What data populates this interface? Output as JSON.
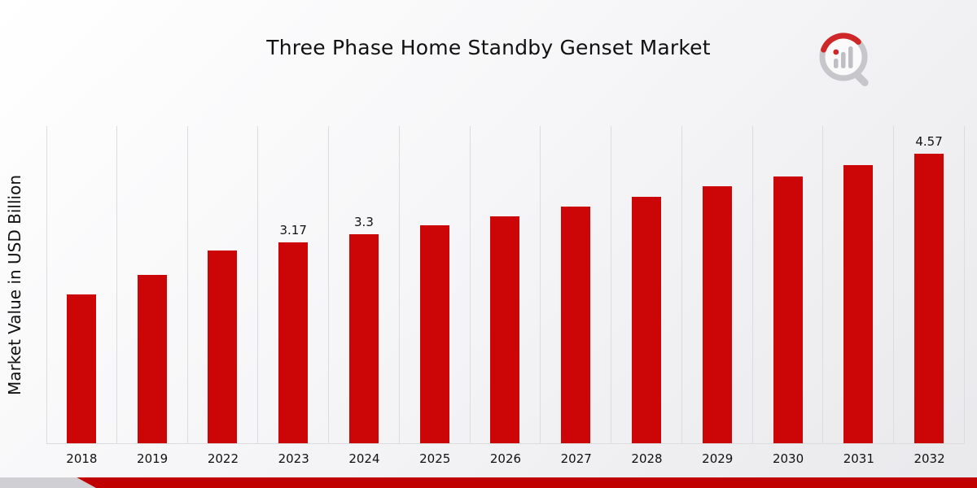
{
  "title": "Three Phase Home Standby Genset Market",
  "ylabel": "Market Value in USD Billion",
  "colors": {
    "bar": "#cc0606",
    "footer": "#c00000",
    "gridline": "#dcdcdf",
    "logo_gray": "#c2c2c7",
    "logo_red": "#cc1111",
    "background_top": "#ffffff",
    "background_bottom": "#e9e9ec"
  },
  "logo": {
    "name": "market-research-magnifier-logo"
  },
  "chart_data": {
    "type": "bar",
    "title": "Three Phase Home Standby Genset Market",
    "xlabel": "",
    "ylabel": "Market Value in USD Billion",
    "categories": [
      "2018",
      "2019",
      "2022",
      "2023",
      "2024",
      "2025",
      "2026",
      "2027",
      "2028",
      "2029",
      "2030",
      "2031",
      "2032"
    ],
    "values": [
      2.35,
      2.65,
      3.04,
      3.17,
      3.3,
      3.44,
      3.58,
      3.73,
      3.88,
      4.05,
      4.21,
      4.39,
      4.57
    ],
    "data_labels": {
      "2023": "3.17",
      "2024": "3.3",
      "2032": "4.57"
    },
    "ylim": [
      0,
      5
    ],
    "grid": "vertical-category-separators",
    "legend": "none",
    "bar_color": "#cc0606",
    "series_name": "Market Value in USD Billion"
  }
}
